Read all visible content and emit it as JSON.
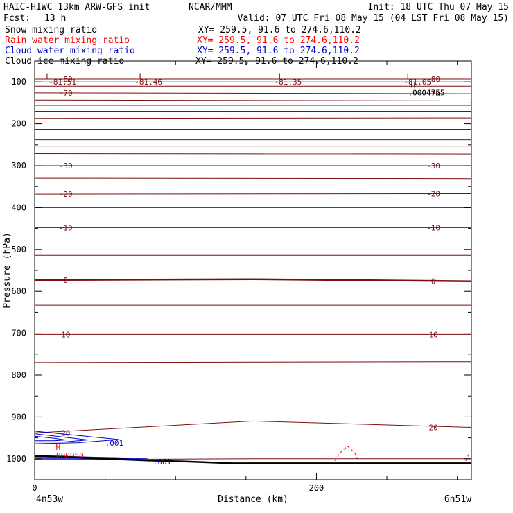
{
  "header": {
    "title": "HAIC-HIWC 13km ARW-GFS init",
    "center": "NCAR/MMM",
    "init": "Init: 18 UTC Thu 07 May 15",
    "fcst_label": "Fcst:",
    "fcst_value": "13 h",
    "valid": "Valid: 07 UTC Fri 08 May 15 (04 LST Fri 08 May 15)"
  },
  "fields": [
    {
      "name": "Snow mixing ratio",
      "xy": "XY= 259.5, 91.6 to 274.6,110.2",
      "color": "#000000"
    },
    {
      "name": "Rain water mixing ratio",
      "xy": "XY= 259.5, 91.6 to 274.6,110.2",
      "color": "#ff0000"
    },
    {
      "name": "Cloud water mixing ratio",
      "xy": "XY= 259.5, 91.6 to 274.6,110.2",
      "color": "#0000cc"
    },
    {
      "name": "Cloud ice mixing ratio",
      "xy": "XY= 259.5, 91.6 to 274.6,110.2",
      "color": "#000000"
    }
  ],
  "colors": {
    "temperature": "#7b0f0f",
    "cloud_water": "#0000cc",
    "rain": "#ff0000",
    "terrain": "#000000"
  },
  "chart_data": {
    "type": "line",
    "xlabel": "Distance (km)",
    "ylabel": "Pressure (hPa)",
    "xlim": [
      0,
      310
    ],
    "ylim": [
      1050,
      50
    ],
    "x_ticks": [
      0,
      200
    ],
    "x_minor_step": 50,
    "y_ticks": [
      100,
      200,
      300,
      400,
      500,
      600,
      700,
      800,
      900,
      1000
    ],
    "y_minor_step": 50,
    "x_endpoints": {
      "left": "4n53w",
      "right": "6n51w"
    },
    "isotherms": [
      {
        "label": "-80",
        "p_left": 93,
        "p_right": 93
      },
      {
        "label": "",
        "p_left": 100,
        "p_right": 100
      },
      {
        "label": "",
        "p_left": 110,
        "p_right": 110
      },
      {
        "label": "-70",
        "p_left": 126,
        "p_right": 128
      },
      {
        "label": "",
        "p_left": 143,
        "p_right": 145
      },
      {
        "label": "",
        "p_left": 156,
        "p_right": 156
      },
      {
        "label": "",
        "p_left": 170,
        "p_right": 170
      },
      {
        "label": "",
        "p_left": 187,
        "p_right": 186
      },
      {
        "label": "",
        "p_left": 213,
        "p_right": 213
      },
      {
        "label": "",
        "p_left": 238,
        "p_right": 238
      },
      {
        "label": "",
        "p_left": 253,
        "p_right": 253
      },
      {
        "label": "",
        "p_left": 271,
        "p_right": 272
      },
      {
        "label": "-30",
        "p_left": 300,
        "p_right": 300
      },
      {
        "label": "",
        "p_left": 330,
        "p_right": 331
      },
      {
        "label": "-20",
        "p_left": 368,
        "p_right": 367
      },
      {
        "label": "",
        "p_left": 400,
        "p_right": 400
      },
      {
        "label": "-10",
        "p_left": 448,
        "p_right": 448
      },
      {
        "label": "",
        "p_left": 514,
        "p_right": 514
      },
      {
        "label": "0",
        "p_left": 573,
        "p_right": 576,
        "p_mid": 571,
        "thick": true
      },
      {
        "label": "",
        "p_left": 633,
        "p_right": 633
      },
      {
        "label": "10",
        "p_left": 703,
        "p_right": 703
      },
      {
        "label": "",
        "p_left": 770,
        "p_right": 768
      },
      {
        "label": "20",
        "p_left": 938,
        "p_right": 925,
        "p_mid": 910
      },
      {
        "label": "",
        "p_left": 1002,
        "p_right": 1000,
        "p_mid": 1000
      }
    ],
    "terrain_pressure": [
      [
        0,
        994
      ],
      [
        20,
        995
      ],
      [
        50,
        1000
      ],
      [
        80,
        1004
      ],
      [
        110,
        1007
      ],
      [
        140,
        1011
      ],
      [
        200,
        1011
      ],
      [
        310,
        1011
      ]
    ],
    "annotations": [
      {
        "text": "L",
        "x": 8,
        "p": 87,
        "color": "#7b0f0f"
      },
      {
        "text": "-81.51",
        "x": 10,
        "p": 100,
        "color": "#7b0f0f"
      },
      {
        "text": "L",
        "x": 74,
        "p": 87,
        "color": "#7b0f0f"
      },
      {
        "text": "-81.46",
        "x": 71,
        "p": 100,
        "color": "#7b0f0f"
      },
      {
        "text": "L",
        "x": 173,
        "p": 87,
        "color": "#7b0f0f"
      },
      {
        "text": "-81.35",
        "x": 170,
        "p": 100,
        "color": "#7b0f0f"
      },
      {
        "text": "L",
        "x": 264,
        "p": 87,
        "color": "#7b0f0f"
      },
      {
        "text": "-81.05",
        "x": 262,
        "p": 100,
        "color": "#7b0f0f"
      },
      {
        "text": "H",
        "x": 267,
        "p": 107,
        "color": "#000000"
      },
      {
        "text": ".0004755",
        "x": 265,
        "p": 125,
        "color": "#000000"
      },
      {
        "text": ".001",
        "x": 50,
        "p": 962,
        "color": "#0000cc"
      },
      {
        "text": "H",
        "x": 15,
        "p": 972,
        "color": "#ff0000"
      },
      {
        "text": ".000050",
        "x": 12,
        "p": 992,
        "color": "#ff0000"
      },
      {
        "text": ".001",
        "x": 84,
        "p": 1007,
        "color": "#0000cc"
      }
    ],
    "cloud_water_contours": [
      [
        [
          0,
          934
        ],
        [
          30,
          944
        ],
        [
          60,
          954
        ],
        [
          30,
          962
        ],
        [
          0,
          964
        ]
      ],
      [
        [
          0,
          940
        ],
        [
          20,
          948
        ],
        [
          38,
          955
        ],
        [
          20,
          960
        ],
        [
          0,
          960
        ]
      ],
      [
        [
          0,
          946
        ],
        [
          14,
          951
        ],
        [
          22,
          955
        ],
        [
          14,
          957
        ],
        [
          0,
          957
        ]
      ],
      [
        [
          0,
          992
        ],
        [
          40,
          996
        ],
        [
          80,
          999
        ],
        [
          40,
          1000
        ],
        [
          0,
          1000
        ]
      ],
      [
        [
          55,
          997
        ],
        [
          64,
          999
        ],
        [
          55,
          1000
        ]
      ]
    ],
    "rain_contours": [
      [
        [
          213,
          1005
        ],
        [
          217,
          985
        ],
        [
          222,
          970
        ],
        [
          227,
          985
        ],
        [
          230,
          1005
        ]
      ],
      [
        [
          306,
          1005
        ],
        [
          308,
          990
        ],
        [
          310,
          985
        ]
      ]
    ]
  }
}
